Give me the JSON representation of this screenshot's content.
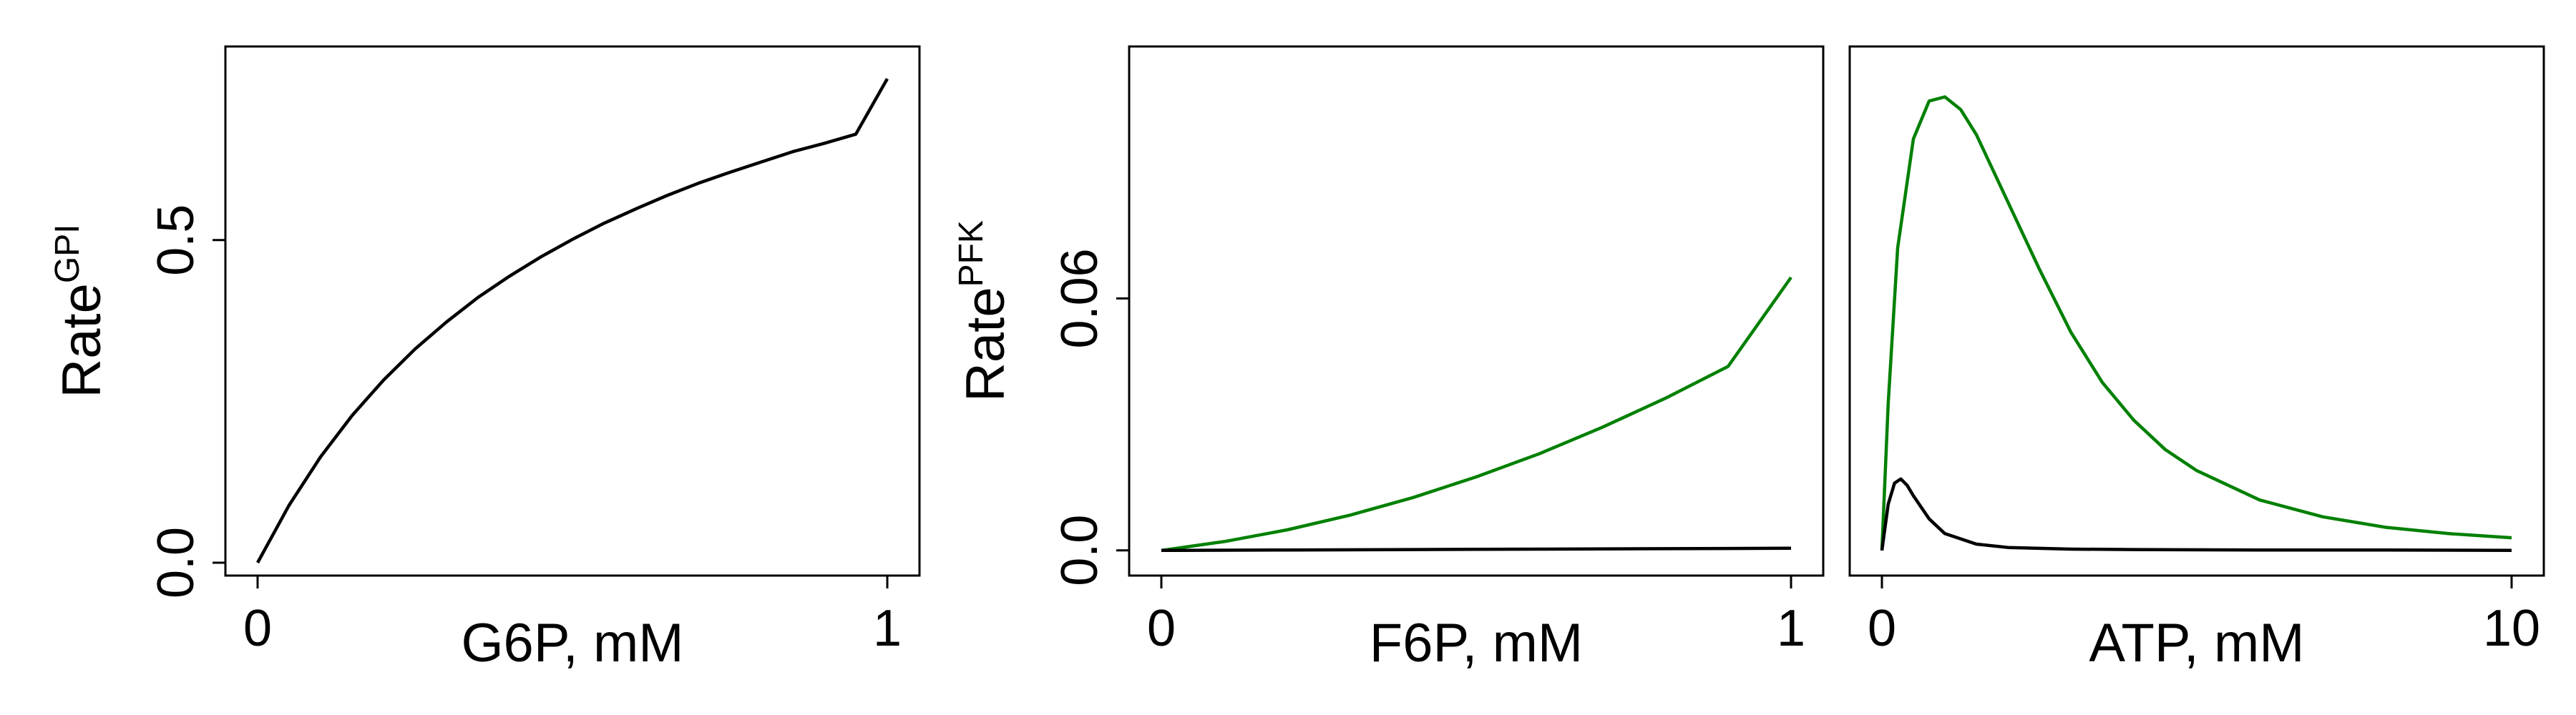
{
  "chart_data": [
    {
      "type": "line",
      "xlabel": "G6P, mM",
      "ylabel": "Rate",
      "ylabel_superscript": "GPI",
      "xlim": [
        0,
        1
      ],
      "ylim": [
        -0.02,
        0.8
      ],
      "xticks": [
        {
          "value": 0,
          "label": "0"
        },
        {
          "value": 1,
          "label": "1"
        }
      ],
      "yticks": [
        {
          "value": 0,
          "label": "0.0"
        },
        {
          "value": 0.5,
          "label": "0.5"
        }
      ],
      "series": [
        {
          "color": "#000000",
          "x": [
            0,
            0.05,
            0.1,
            0.15,
            0.2,
            0.25,
            0.3,
            0.35,
            0.4,
            0.45,
            0.5,
            0.55,
            0.6,
            0.65,
            0.7,
            0.75,
            0.8,
            0.85,
            0.9,
            0.95,
            1.0
          ],
          "y": [
            0.0,
            0.089,
            0.164,
            0.228,
            0.283,
            0.331,
            0.373,
            0.411,
            0.444,
            0.474,
            0.501,
            0.526,
            0.548,
            0.569,
            0.588,
            0.605,
            0.621,
            0.637,
            0.65,
            0.664,
            0.75
          ]
        }
      ]
    },
    {
      "type": "line",
      "xlabel": "F6P, mM",
      "ylabel": "Rate",
      "ylabel_superscript": "PFK",
      "xlim": [
        0,
        1
      ],
      "ylim": [
        -0.006,
        0.12
      ],
      "xticks": [
        {
          "value": 0,
          "label": "0"
        },
        {
          "value": 1,
          "label": "1"
        }
      ],
      "yticks": [
        {
          "value": 0,
          "label": "0.0"
        },
        {
          "value": 0.06,
          "label": "0.06"
        }
      ],
      "series": [
        {
          "color": "#008000",
          "x": [
            0,
            0.1,
            0.2,
            0.3,
            0.4,
            0.5,
            0.6,
            0.7,
            0.8,
            0.9,
            1.0
          ],
          "y": [
            0.0,
            0.0021,
            0.0049,
            0.0084,
            0.0126,
            0.0175,
            0.023,
            0.0293,
            0.0362,
            0.0438,
            0.065
          ]
        },
        {
          "color": "#000000",
          "x": [
            0,
            0.2,
            0.4,
            0.6,
            0.8,
            1.0
          ],
          "y": [
            0.0,
            0.0001,
            0.0002,
            0.0003,
            0.0004,
            0.0005
          ]
        }
      ]
    },
    {
      "type": "line",
      "xlabel": "ATP, mM",
      "xlim": [
        0,
        10
      ],
      "ylim": [
        -0.006,
        0.12
      ],
      "xticks": [
        {
          "value": 0,
          "label": "0"
        },
        {
          "value": 10,
          "label": "10"
        }
      ],
      "yticks": [],
      "series": [
        {
          "color": "#008000",
          "x": [
            0,
            0.1,
            0.25,
            0.5,
            0.75,
            1.0,
            1.25,
            1.5,
            1.75,
            2.0,
            2.5,
            3.0,
            3.5,
            4.0,
            4.5,
            5.0,
            6.0,
            7.0,
            8.0,
            9.0,
            10.0
          ],
          "y": [
            0.0,
            0.035,
            0.072,
            0.098,
            0.107,
            0.108,
            0.105,
            0.099,
            0.091,
            0.083,
            0.067,
            0.052,
            0.04,
            0.031,
            0.024,
            0.019,
            0.012,
            0.008,
            0.0055,
            0.004,
            0.003
          ]
        },
        {
          "color": "#000000",
          "x": [
            0,
            0.1,
            0.2,
            0.3,
            0.4,
            0.5,
            0.75,
            1.0,
            1.5,
            2.0,
            3.0,
            4.0,
            6.0,
            8.0,
            10.0
          ],
          "y": [
            0.0,
            0.011,
            0.016,
            0.017,
            0.0155,
            0.013,
            0.0075,
            0.004,
            0.0015,
            0.0007,
            0.0003,
            0.0002,
            0.0001,
            0.0001,
            0.0
          ]
        }
      ]
    }
  ]
}
